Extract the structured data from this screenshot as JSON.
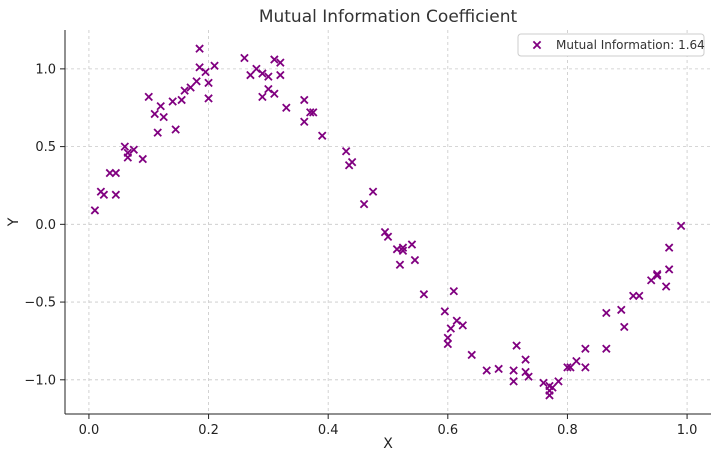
{
  "chart_data": {
    "type": "scatter",
    "title": "Mutual Information Coefficient",
    "xlabel": "X",
    "ylabel": "Y",
    "xlim": [
      -0.04,
      1.04
    ],
    "ylim": [
      -1.22,
      1.25
    ],
    "xticks": [
      0.0,
      0.2,
      0.4,
      0.6,
      0.8,
      1.0
    ],
    "xtick_labels": [
      "0.0",
      "0.2",
      "0.4",
      "0.6",
      "0.8",
      "1.0"
    ],
    "yticks": [
      -1.0,
      -0.5,
      0.0,
      0.5,
      1.0
    ],
    "ytick_labels": [
      "−1.0",
      "−0.5",
      "0.0",
      "0.5",
      "1.0"
    ],
    "grid": true,
    "legend_position": "top-right",
    "series": [
      {
        "name": "Mutual Information: 1.64",
        "color": "#800080",
        "marker": "x",
        "points": [
          [
            0.01,
            0.09
          ],
          [
            0.02,
            0.21
          ],
          [
            0.025,
            0.19
          ],
          [
            0.035,
            0.33
          ],
          [
            0.045,
            0.33
          ],
          [
            0.045,
            0.19
          ],
          [
            0.06,
            0.5
          ],
          [
            0.065,
            0.43
          ],
          [
            0.065,
            0.46
          ],
          [
            0.075,
            0.48
          ],
          [
            0.09,
            0.42
          ],
          [
            0.1,
            0.82
          ],
          [
            0.11,
            0.71
          ],
          [
            0.115,
            0.59
          ],
          [
            0.12,
            0.76
          ],
          [
            0.125,
            0.69
          ],
          [
            0.14,
            0.79
          ],
          [
            0.145,
            0.61
          ],
          [
            0.155,
            0.8
          ],
          [
            0.16,
            0.86
          ],
          [
            0.17,
            0.88
          ],
          [
            0.18,
            0.92
          ],
          [
            0.185,
            1.13
          ],
          [
            0.185,
            1.01
          ],
          [
            0.195,
            0.98
          ],
          [
            0.2,
            0.81
          ],
          [
            0.2,
            0.91
          ],
          [
            0.21,
            1.02
          ],
          [
            0.26,
            1.07
          ],
          [
            0.27,
            0.96
          ],
          [
            0.28,
            1.0
          ],
          [
            0.29,
            0.82
          ],
          [
            0.29,
            0.97
          ],
          [
            0.3,
            0.87
          ],
          [
            0.3,
            0.95
          ],
          [
            0.31,
            1.06
          ],
          [
            0.31,
            0.84
          ],
          [
            0.32,
            1.04
          ],
          [
            0.32,
            0.96
          ],
          [
            0.33,
            0.75
          ],
          [
            0.36,
            0.8
          ],
          [
            0.36,
            0.66
          ],
          [
            0.37,
            0.72
          ],
          [
            0.375,
            0.72
          ],
          [
            0.39,
            0.57
          ],
          [
            0.43,
            0.47
          ],
          [
            0.435,
            0.38
          ],
          [
            0.44,
            0.4
          ],
          [
            0.46,
            0.13
          ],
          [
            0.475,
            0.21
          ],
          [
            0.495,
            -0.05
          ],
          [
            0.5,
            -0.08
          ],
          [
            0.515,
            -0.16
          ],
          [
            0.52,
            -0.26
          ],
          [
            0.525,
            -0.17
          ],
          [
            0.525,
            -0.15
          ],
          [
            0.54,
            -0.13
          ],
          [
            0.545,
            -0.23
          ],
          [
            0.56,
            -0.45
          ],
          [
            0.595,
            -0.56
          ],
          [
            0.6,
            -0.73
          ],
          [
            0.6,
            -0.77
          ],
          [
            0.605,
            -0.67
          ],
          [
            0.61,
            -0.43
          ],
          [
            0.615,
            -0.62
          ],
          [
            0.625,
            -0.65
          ],
          [
            0.64,
            -0.84
          ],
          [
            0.665,
            -0.94
          ],
          [
            0.685,
            -0.93
          ],
          [
            0.71,
            -0.94
          ],
          [
            0.71,
            -1.01
          ],
          [
            0.715,
            -0.78
          ],
          [
            0.73,
            -0.87
          ],
          [
            0.73,
            -0.95
          ],
          [
            0.735,
            -0.98
          ],
          [
            0.76,
            -1.02
          ],
          [
            0.77,
            -1.04
          ],
          [
            0.77,
            -1.07
          ],
          [
            0.77,
            -1.1
          ],
          [
            0.775,
            -1.05
          ],
          [
            0.785,
            -1.01
          ],
          [
            0.8,
            -0.92
          ],
          [
            0.805,
            -0.92
          ],
          [
            0.815,
            -0.88
          ],
          [
            0.83,
            -0.92
          ],
          [
            0.83,
            -0.8
          ],
          [
            0.865,
            -0.57
          ],
          [
            0.865,
            -0.8
          ],
          [
            0.89,
            -0.55
          ],
          [
            0.895,
            -0.66
          ],
          [
            0.91,
            -0.46
          ],
          [
            0.92,
            -0.46
          ],
          [
            0.94,
            -0.36
          ],
          [
            0.95,
            -0.33
          ],
          [
            0.95,
            -0.32
          ],
          [
            0.965,
            -0.4
          ],
          [
            0.97,
            -0.29
          ],
          [
            0.97,
            -0.15
          ],
          [
            0.99,
            -0.01
          ]
        ]
      }
    ]
  }
}
